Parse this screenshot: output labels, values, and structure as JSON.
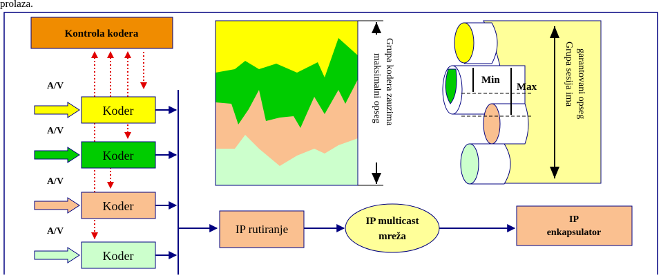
{
  "header": {
    "text": "prolaza."
  },
  "control": {
    "label": "Kontrola kodera"
  },
  "coders": [
    {
      "input": "A/V",
      "label": "Koder"
    },
    {
      "input": "A/V",
      "label": "Koder"
    },
    {
      "input": "A/V",
      "label": "Koder"
    },
    {
      "input": "A/V",
      "label": "Koder"
    }
  ],
  "chart": {
    "caption": [
      "Grupa kodera zauzima",
      "maksimalni opseg"
    ]
  },
  "sessions": {
    "min": "Min",
    "max": "Max",
    "caption": [
      "Grupa sesija ima",
      "garantovani opseg"
    ]
  },
  "nodes": [
    {
      "label": [
        "IP rutiranje"
      ]
    },
    {
      "label": [
        "IP multicast",
        "mreža"
      ]
    },
    {
      "label": [
        "IP",
        "enkapsulator"
      ]
    }
  ]
}
